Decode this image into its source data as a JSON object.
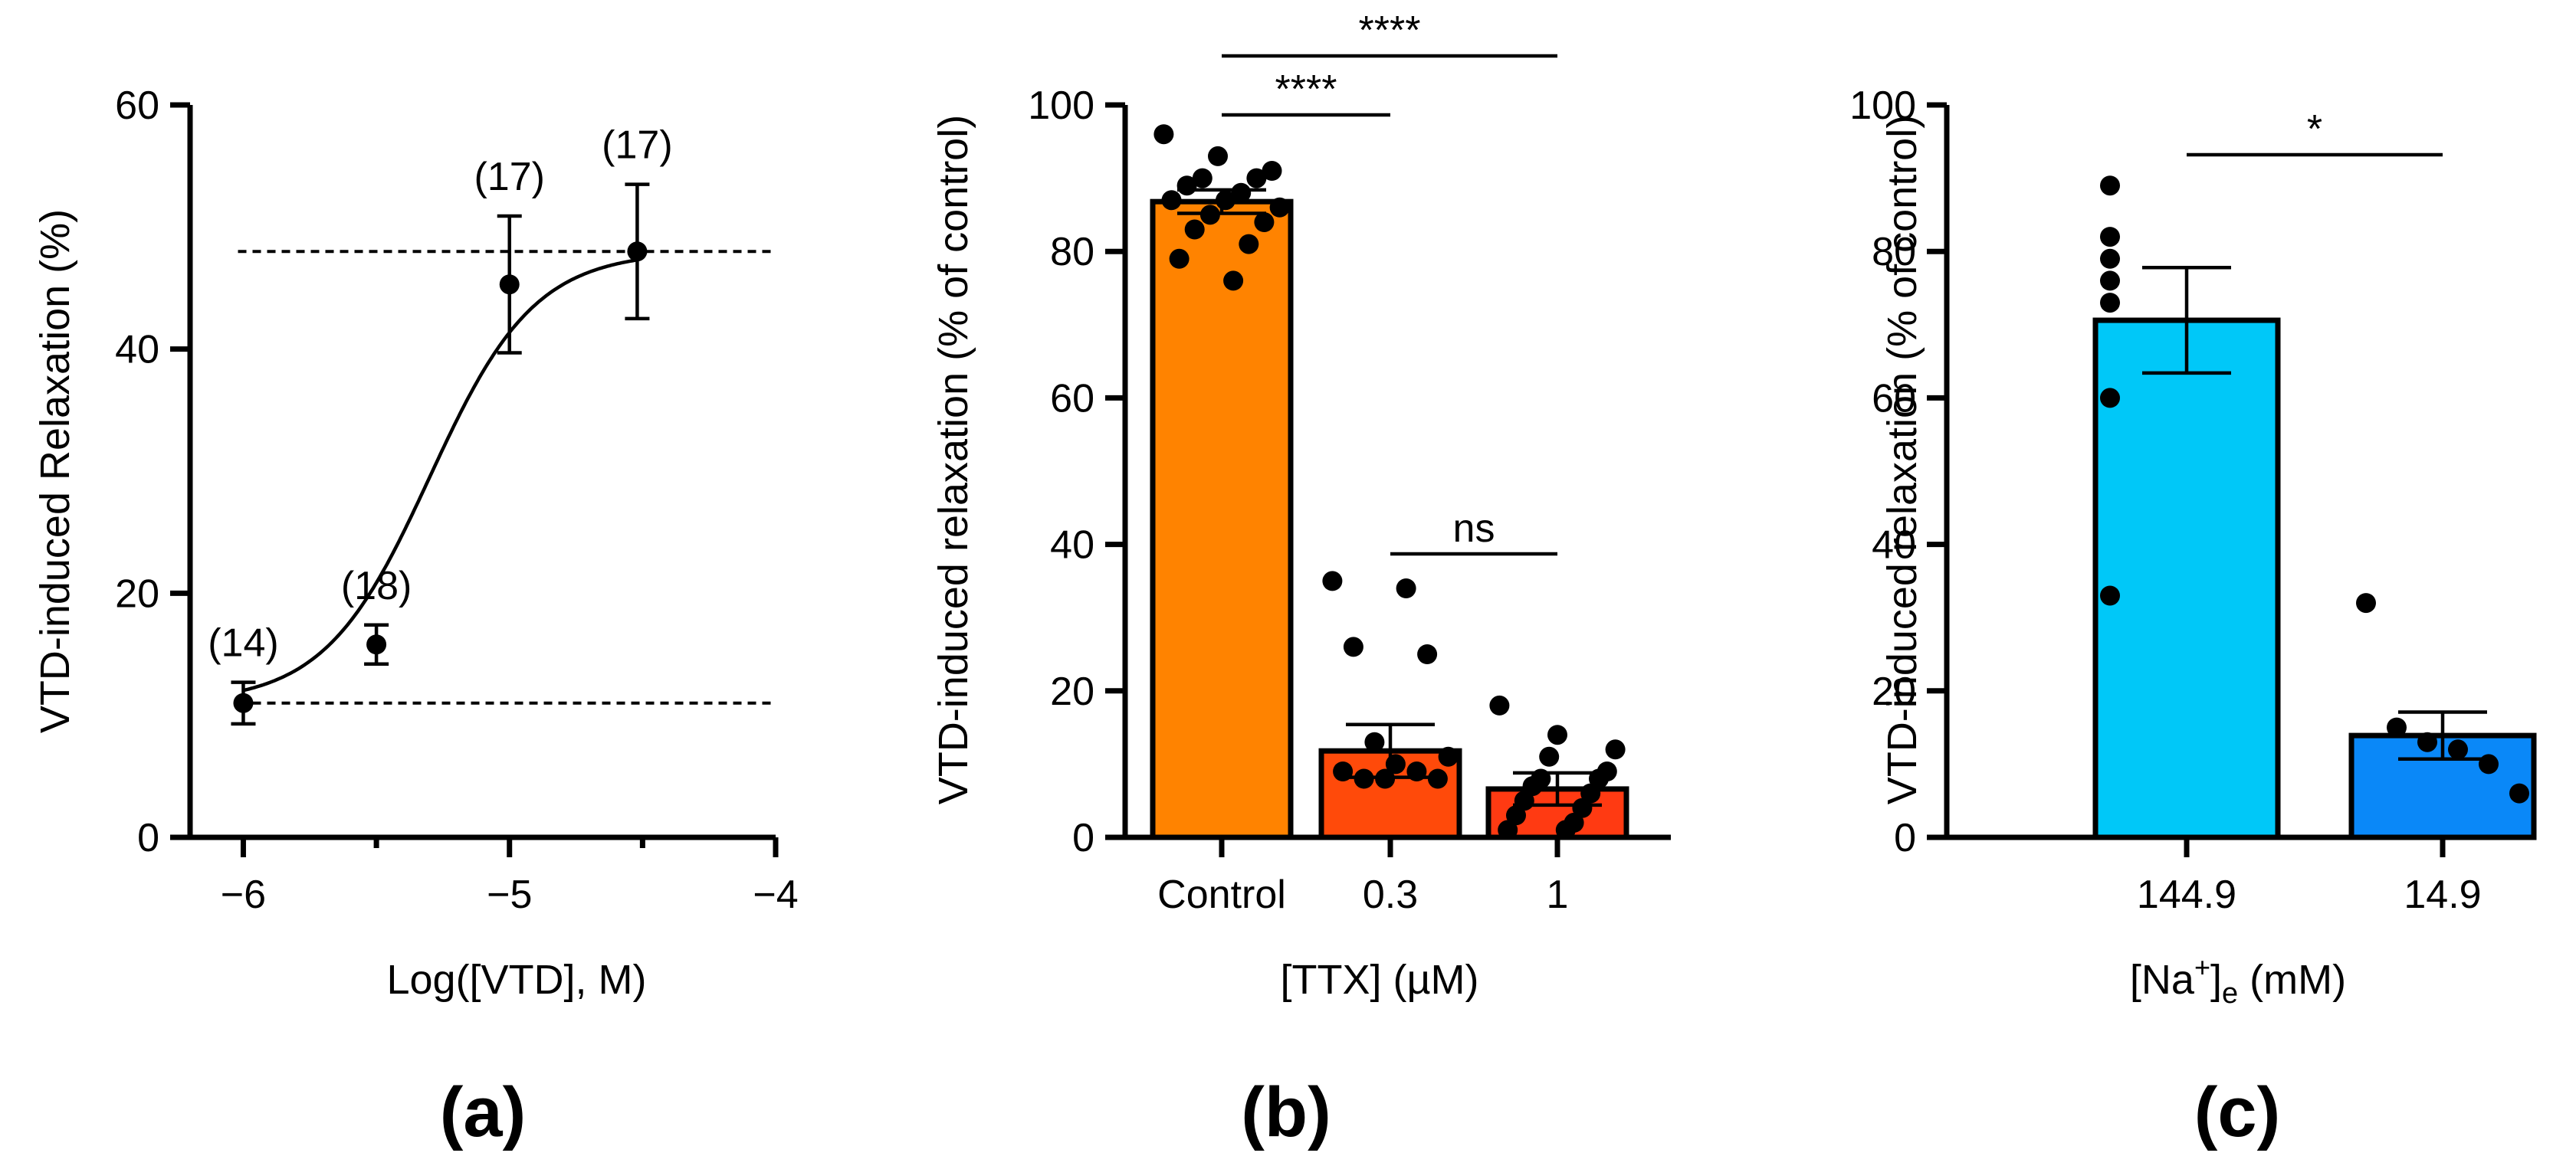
{
  "chart_data": [
    {
      "type": "scatter",
      "panel": "(a)",
      "xlabel": "Log([VTD], M)",
      "ylabel": "VTD-induced Relaxation (%)",
      "xlim": [
        -6.2,
        -4
      ],
      "ylim": [
        0,
        60
      ],
      "x_ticks": [
        -6,
        -5,
        -4
      ],
      "x_tick_labels": [
        "−6",
        "−5",
        "−4"
      ],
      "x_minor_ticks": [
        -5.5,
        -4.5
      ],
      "y_ticks": [
        0,
        20,
        40,
        60
      ],
      "y_tick_labels": [
        "0",
        "20",
        "40",
        "60"
      ],
      "points": [
        {
          "x": -6.0,
          "y": 11.0,
          "sem": 1.7,
          "n_label": "(14)"
        },
        {
          "x": -5.5,
          "y": 15.8,
          "sem": 1.6,
          "n_label": "(18)"
        },
        {
          "x": -5.0,
          "y": 45.3,
          "sem": 5.6,
          "n_label": "(17)"
        },
        {
          "x": -4.52,
          "y": 48.0,
          "sem": 5.5,
          "n_label": "(17)"
        }
      ],
      "fit": {
        "bottom": 11.0,
        "top": 48.0,
        "logEC50": -5.3,
        "hill": 2.2
      },
      "reference_lines_y": [
        11.0,
        48.0
      ]
    },
    {
      "type": "bar",
      "panel": "(b)",
      "xlabel": "[TTX] (µM)",
      "ylabel": "VTD-induced relaxation (% of control)",
      "ylim": [
        0,
        100
      ],
      "y_ticks": [
        0,
        20,
        40,
        60,
        80,
        100
      ],
      "y_tick_labels": [
        "0",
        "20",
        "40",
        "60",
        "80",
        "100"
      ],
      "categories": [
        "Control",
        "0.3",
        "1"
      ],
      "values": [
        86.8,
        11.8,
        6.6
      ],
      "sem": [
        1.6,
        3.6,
        2.2
      ],
      "colors": [
        "#ff8300",
        "#ff4a0a",
        "#ff3a12"
      ],
      "points": [
        [
          96,
          93,
          91,
          90,
          90,
          89,
          88,
          87,
          87,
          86,
          85,
          84,
          83,
          81,
          79,
          76
        ],
        [
          35,
          34,
          26,
          25,
          13,
          11,
          10,
          9,
          9,
          8,
          8,
          8
        ],
        [
          18,
          14,
          12,
          11,
          9,
          8,
          8,
          7,
          6,
          5,
          4,
          3,
          2,
          1,
          1
        ]
      ],
      "significance": [
        {
          "from": 0,
          "to": 1,
          "label": "****",
          "y": 99
        },
        {
          "from": 0,
          "to": 2,
          "label": "****",
          "y": 107
        },
        {
          "from": 1,
          "to": 2,
          "label": "ns",
          "y": 39
        }
      ]
    },
    {
      "type": "bar",
      "panel": "(c)",
      "xlabel": "[Na⁺]ₑ (mM)",
      "xlabel_parts": {
        "pre": "[Na",
        "sup": "+",
        "mid": "]",
        "sub": "e",
        "post": " (mM)"
      },
      "ylabel": "VTD-induced relaxation (% of control)",
      "ylim": [
        0,
        100
      ],
      "y_ticks": [
        0,
        20,
        40,
        60,
        80,
        100
      ],
      "y_tick_labels": [
        "0",
        "20",
        "40",
        "60",
        "80",
        "100"
      ],
      "categories": [
        "144.9",
        "14.9"
      ],
      "values": [
        70.6,
        13.9
      ],
      "sem": [
        7.2,
        3.2
      ],
      "colors": [
        "#00c8f8",
        "#0a88f8"
      ],
      "points": [
        [
          89,
          82,
          79,
          76,
          73,
          60,
          33
        ],
        [
          32,
          15,
          13,
          12,
          10,
          6
        ]
      ],
      "significance": [
        {
          "from": 0,
          "to": 1,
          "label": "*",
          "y": 93
        }
      ]
    }
  ]
}
